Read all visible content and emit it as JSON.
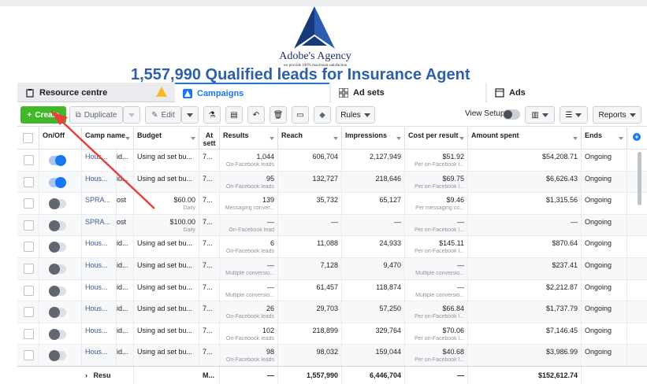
{
  "logo": {
    "name": "Adobe's Agency",
    "tagline": "we provide 100% maximum satisfaction"
  },
  "headline": "1,557,990  Qualified leads for Insurance Agent",
  "tabs": [
    {
      "label": "Resource centre"
    },
    {
      "label": "Campaigns"
    },
    {
      "label": "Ad sets"
    },
    {
      "label": "Ads"
    }
  ],
  "toolbar": {
    "create": "Create",
    "duplicate": "Duplicate",
    "edit": "Edit",
    "rules": "Rules",
    "view_setup": "View Setup",
    "reports": "Reports"
  },
  "columns": {
    "onoff": "On/Off",
    "campaign": "Camp name",
    "budget": "Budget",
    "attribution": "At sett",
    "results": "Results",
    "reach": "Reach",
    "impressions": "Impressions",
    "cost": "Cost per result",
    "amount": "Amount spent",
    "ends": "Ends"
  },
  "rows": [
    {
      "on": true,
      "name": "Hous...",
      "id": "id...",
      "budget": "Using ad set bu...",
      "budget_sub": "",
      "attr": "7...",
      "results": "1,044",
      "results_sub": "On-Facebook leads",
      "reach": "606,704",
      "impressions": "2,127,949",
      "cost": "$51.92",
      "cost_sub": "Per on-Facebook l...",
      "amount": "$54,208.71",
      "ends": "Ongoing"
    },
    {
      "on": true,
      "name": "Hous...",
      "id": "id...",
      "budget": "Using ad set bu...",
      "budget_sub": "",
      "attr": "7...",
      "results": "95",
      "results_sub": "On-Facebook leads",
      "reach": "132,727",
      "impressions": "218,646",
      "cost": "$69.75",
      "cost_sub": "Per on-Facebook l...",
      "amount": "$6,626.43",
      "ends": "Ongoing"
    },
    {
      "on": false,
      "name": "SPRA...",
      "id": "ost",
      "budget": "$60.00",
      "budget_sub": "Daily",
      "attr": "7...",
      "results": "139",
      "results_sub": "Messaging conver...",
      "reach": "35,732",
      "impressions": "65,127",
      "cost": "$9.46",
      "cost_sub": "Per messaging co...",
      "amount": "$1,315.56",
      "ends": "Ongoing"
    },
    {
      "on": false,
      "name": "SPRA...",
      "id": "ost",
      "budget": "$100.00",
      "budget_sub": "Daily",
      "attr": "7...",
      "results": "—",
      "results_sub": "On-Facebook lead",
      "reach": "—",
      "impressions": "—",
      "cost": "—",
      "cost_sub": "Per on-Facebook l...",
      "amount": "—",
      "ends": "Ongoing"
    },
    {
      "on": false,
      "name": "Hous...",
      "id": "id...",
      "budget": "Using ad set bu...",
      "budget_sub": "",
      "attr": "7...",
      "results": "6",
      "results_sub": "On-Facebook leads",
      "reach": "11,088",
      "impressions": "24,933",
      "cost": "$145.11",
      "cost_sub": "Per on-Facebook l...",
      "amount": "$870.64",
      "ends": "Ongoing"
    },
    {
      "on": false,
      "name": "Hous...",
      "id": "id...",
      "budget": "Using ad set bu...",
      "budget_sub": "",
      "attr": "7...",
      "results": "—",
      "results_sub": "Multiple conversio...",
      "reach": "7,128",
      "impressions": "9,470",
      "cost": "—",
      "cost_sub": "Multiple conversio...",
      "amount": "$237.41",
      "ends": "Ongoing"
    },
    {
      "on": false,
      "name": "Hous...",
      "id": "id...",
      "budget": "Using ad set bu...",
      "budget_sub": "",
      "attr": "7...",
      "results": "—",
      "results_sub": "Multiple conversio...",
      "reach": "61,457",
      "impressions": "118,874",
      "cost": "—",
      "cost_sub": "Multiple conversio...",
      "amount": "$2,212.87",
      "ends": "Ongoing"
    },
    {
      "on": false,
      "name": "Hous...",
      "id": "id...",
      "budget": "Using ad set bu...",
      "budget_sub": "",
      "attr": "7...",
      "results": "26",
      "results_sub": "On-Facebook leads",
      "reach": "29,703",
      "impressions": "57,250",
      "cost": "$66.84",
      "cost_sub": "Per on-Facebook l...",
      "amount": "$1,737.79",
      "ends": "Ongoing"
    },
    {
      "on": false,
      "name": "Hous...",
      "id": "id...",
      "budget": "Using ad set bu...",
      "budget_sub": "",
      "attr": "7...",
      "results": "102",
      "results_sub": "On-Facebook leads",
      "reach": "218,899",
      "impressions": "329,764",
      "cost": "$70.06",
      "cost_sub": "Per on-Facebook l...",
      "amount": "$7,146.45",
      "ends": "Ongoing"
    },
    {
      "on": false,
      "name": "Hous...",
      "id": "id...",
      "budget": "Using ad set bu...",
      "budget_sub": "",
      "attr": "7...",
      "results": "98",
      "results_sub": "On-Facebook leads",
      "reach": "98,032",
      "impressions": "159,044",
      "cost": "$40.68",
      "cost_sub": "Per on-Facebook l...",
      "amount": "$3,986.99",
      "ends": "Ongoing"
    }
  ],
  "totals": {
    "label": "Resu",
    "attr": "M...",
    "results": "—",
    "reach": "1,557,990",
    "impressions": "6,446,704",
    "cost": "—",
    "amount": "$152,612.74"
  },
  "colors": {
    "accent": "#1877f2",
    "create": "#42b72a",
    "headline": "#2f5fa8",
    "arrow": "#e8413a"
  }
}
